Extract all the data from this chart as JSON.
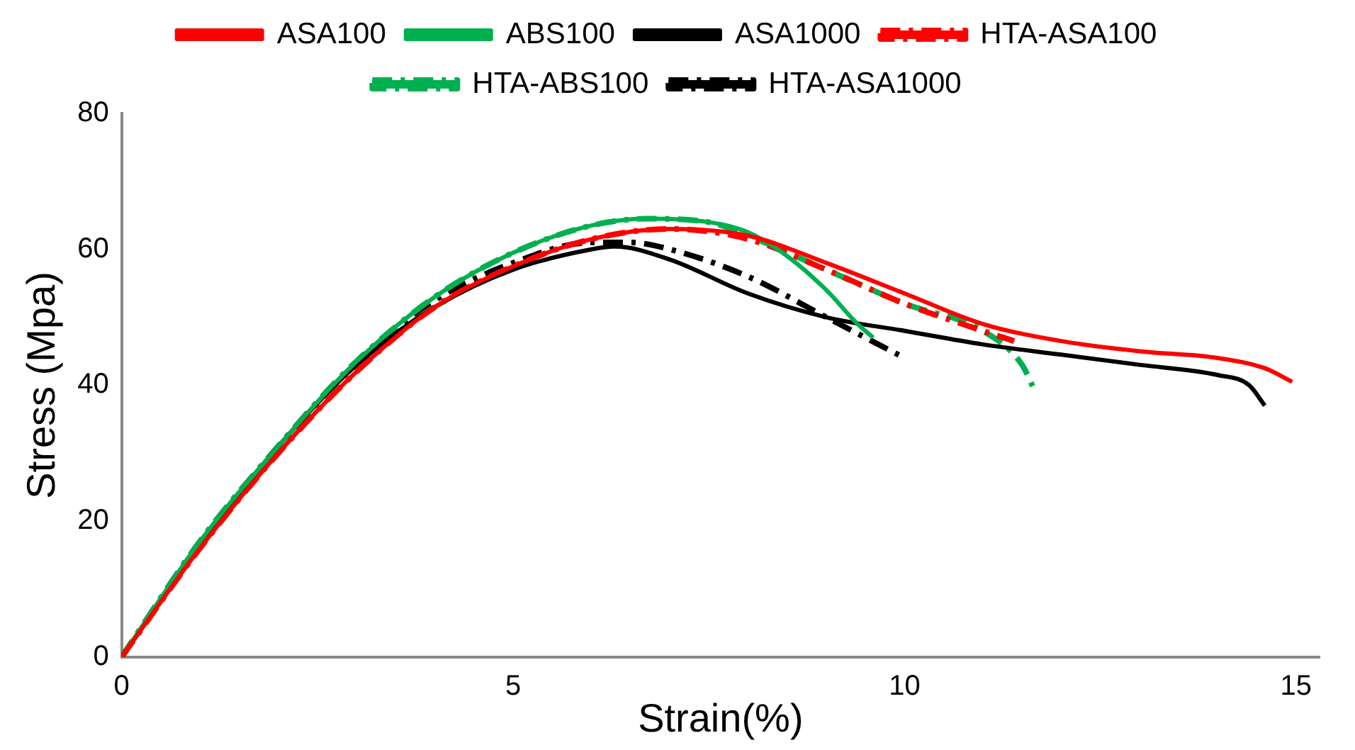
{
  "chart_data": {
    "type": "line",
    "xlabel": "Strain(%)",
    "ylabel": "Stress (Mpa)",
    "xlim": [
      0,
      15.3
    ],
    "xticks": [
      0,
      5,
      10,
      15
    ],
    "ylim": [
      0,
      80
    ],
    "yticks": [
      0,
      20,
      40,
      60,
      80
    ],
    "grid": false,
    "legend": "top",
    "marker": "none",
    "series": [
      {
        "name": "ASA100",
        "color": "#ff0000",
        "line_style": "solid",
        "x": [
          0,
          1,
          2,
          3,
          4,
          5,
          6,
          7,
          8,
          9,
          10,
          11,
          12,
          13,
          14,
          14.6,
          14.95
        ],
        "values": [
          0,
          16,
          30,
          42,
          51.5,
          57.5,
          61.5,
          63,
          62,
          58,
          53.5,
          49,
          46.5,
          45,
          44,
          42.5,
          40.5
        ]
      },
      {
        "name": "ABS100",
        "color": "#00b050",
        "line_style": "solid",
        "x": [
          0,
          1,
          2,
          3,
          4,
          5,
          6,
          6.7,
          7.5,
          8,
          8.5,
          9,
          9.4,
          9.6
        ],
        "values": [
          0,
          17,
          31,
          43.5,
          53,
          59.5,
          63.5,
          64.5,
          64,
          62.5,
          59,
          54,
          49,
          47
        ]
      },
      {
        "name": "ASA1000",
        "color": "#000000",
        "line_style": "solid",
        "x": [
          0,
          1,
          2,
          3,
          4,
          5,
          6,
          6.3,
          7,
          8,
          9,
          10,
          11,
          12,
          13,
          14,
          14.4,
          14.6
        ],
        "values": [
          0,
          16.5,
          31,
          43,
          51.5,
          57,
          60,
          60.4,
          58.5,
          53.5,
          50,
          48,
          46,
          44.5,
          43,
          41.5,
          40,
          37
        ]
      },
      {
        "name": "HTA-ASA100",
        "color": "#ff0000",
        "line_style": "dashed",
        "x": [
          0,
          1,
          2,
          3,
          4,
          5,
          6,
          7,
          8,
          9,
          10,
          11,
          11.4
        ],
        "values": [
          0,
          16,
          30,
          42,
          51.5,
          57.5,
          61.5,
          63,
          61.5,
          57,
          52,
          48,
          46.5
        ]
      },
      {
        "name": "HTA-ABS100",
        "color": "#00b050",
        "line_style": "dashed",
        "x": [
          0,
          1,
          2,
          3,
          4,
          5,
          6,
          6.7,
          7.5,
          8,
          9,
          10,
          11,
          11.5,
          11.65
        ],
        "values": [
          0,
          17,
          31,
          43.5,
          53,
          59.5,
          63.5,
          64.5,
          64,
          62,
          57,
          52,
          48,
          43,
          39.5
        ]
      },
      {
        "name": "HTA-ASA1000",
        "color": "#000000",
        "line_style": "dashed",
        "x": [
          0,
          1,
          2,
          3,
          4,
          5,
          6,
          6.5,
          7,
          8,
          9,
          9.5,
          10
        ],
        "values": [
          0,
          17,
          31,
          43.5,
          52.5,
          58,
          61,
          61,
          60,
          56,
          50,
          47,
          44
        ]
      }
    ]
  }
}
